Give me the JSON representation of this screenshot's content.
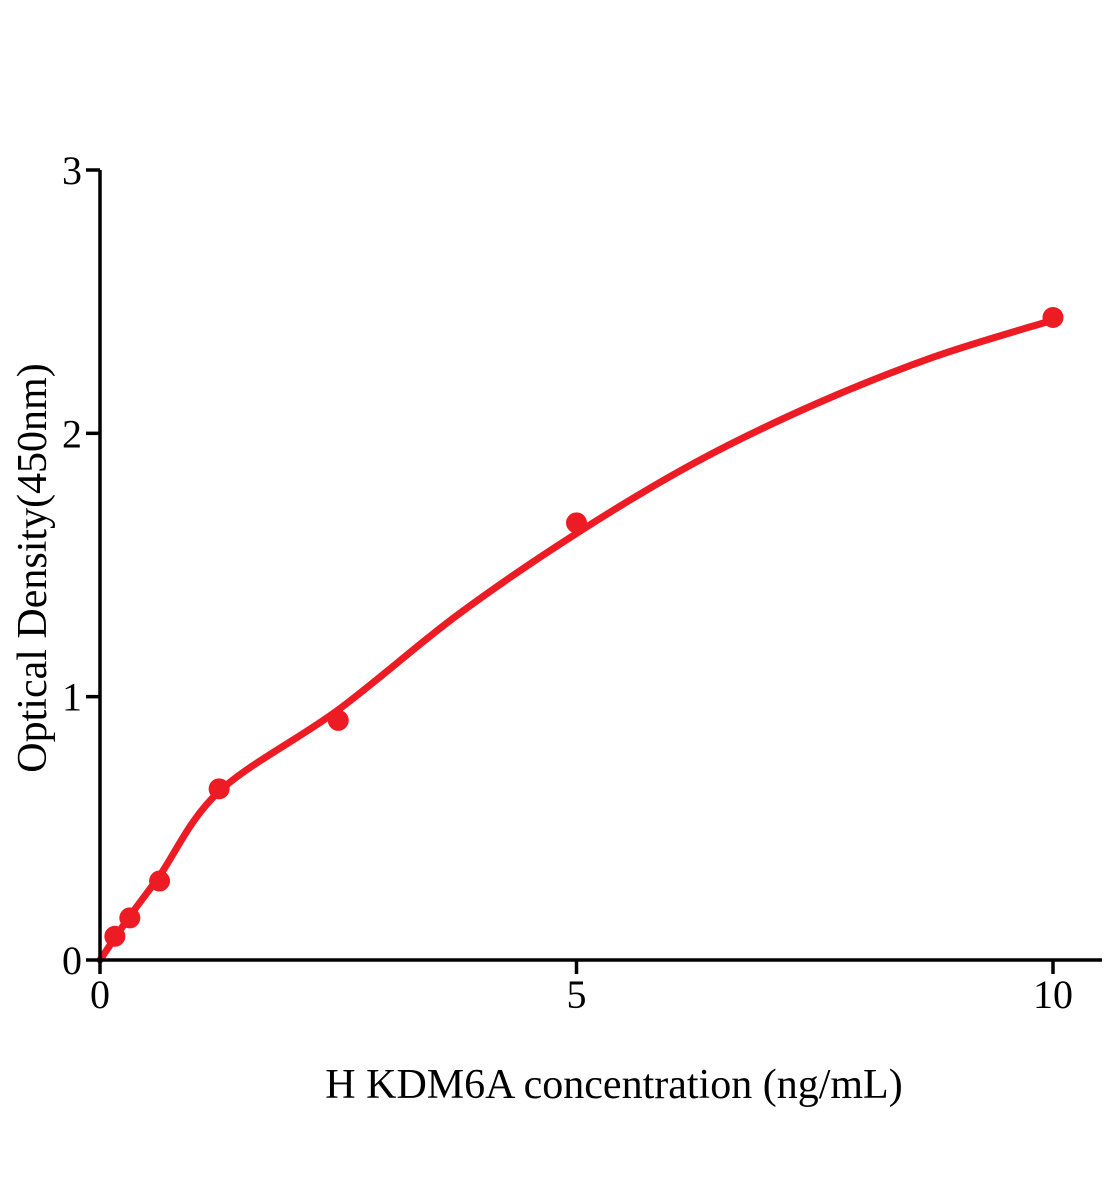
{
  "figure": {
    "background": "#ffffff",
    "description": "ELISA standard curve scatter plot with fitted saturation curve"
  },
  "chart_data": {
    "type": "scatter",
    "title": "",
    "xlabel": "H KDM6A concentration (ng/mL)",
    "ylabel": "Optical Density(450nm)",
    "xlim": [
      0,
      10.5
    ],
    "ylim": [
      0,
      3
    ],
    "xticks": {
      "values": [
        0,
        5,
        10
      ],
      "labels": [
        "0",
        "5",
        "10"
      ]
    },
    "yticks": {
      "values": [
        0,
        1,
        2,
        3
      ],
      "labels": [
        "0",
        "1",
        "2",
        "3"
      ]
    },
    "grid": false,
    "legend": "none",
    "colors": {
      "points": "#EC1B24",
      "curve": "#EC1B24",
      "axis": "#000000",
      "text": "#000000"
    },
    "series": [
      {
        "name": "H KDM6A standard points",
        "type": "scatter",
        "marker": "circle",
        "color": "#EC1B24",
        "x": [
          0.156,
          0.313,
          0.625,
          1.25,
          2.5,
          5,
          10
        ],
        "y": [
          0.09,
          0.16,
          0.3,
          0.65,
          0.91,
          1.66,
          2.44
        ]
      },
      {
        "name": "fit curve",
        "type": "line",
        "color": "#EC1B24",
        "x": [
          0,
          0.3,
          0.625,
          1.25,
          2.5,
          3.75,
          5,
          6.25,
          7.5,
          8.75,
          10
        ],
        "y": [
          0.0,
          0.16,
          0.32,
          0.64,
          0.95,
          1.31,
          1.62,
          1.89,
          2.11,
          2.29,
          2.43
        ]
      }
    ]
  }
}
